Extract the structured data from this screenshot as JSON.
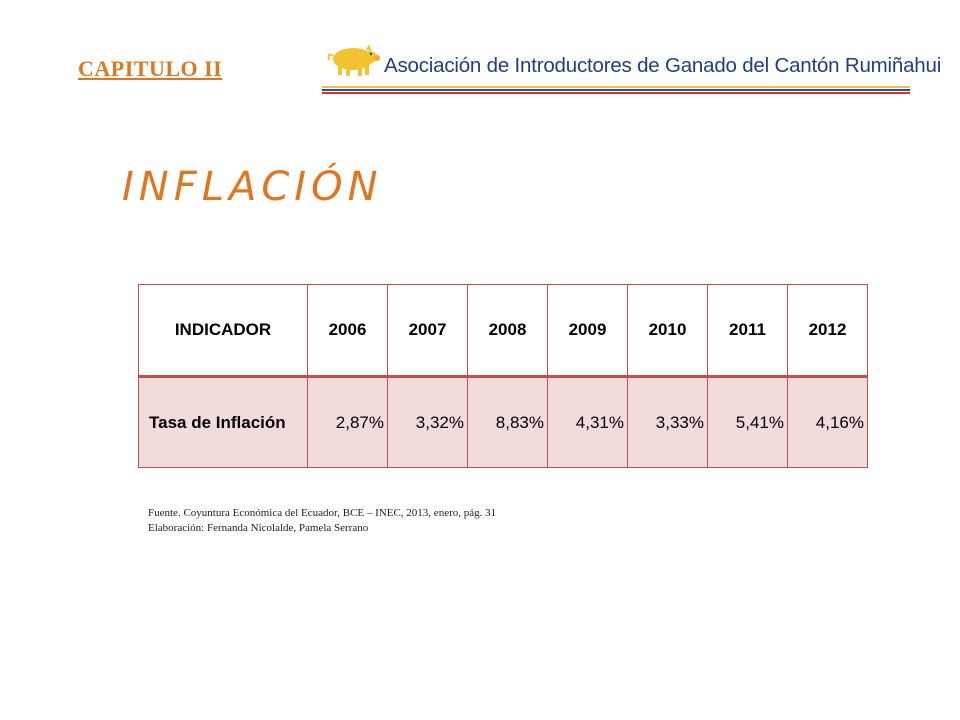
{
  "header": {
    "chapter": "CAPITULO II",
    "organization": "Asociación de Introductores de Ganado del Cantón Rumiñahui",
    "logo_icon": "pig-icon",
    "colors": {
      "accent": "#e0761f",
      "org_text": "#1e3f86",
      "stripe_yellow": "#f2c230",
      "stripe_blue": "#2b4fa0",
      "stripe_red": "#d8312a"
    }
  },
  "title": "INFLACIÓN",
  "table": {
    "headers": [
      "INDICADOR",
      "2006",
      "2007",
      "2008",
      "2009",
      "2010",
      "2011",
      "2012"
    ],
    "row": {
      "label": "Tasa de Inflación",
      "values": [
        "2,87%",
        "3,32%",
        "8,83%",
        "4,31%",
        "3,33%",
        "5,41%",
        "4,16%"
      ]
    },
    "colors": {
      "border": "#c0504d",
      "row_fill": "#f2dcdb"
    }
  },
  "source": {
    "line1": "Fuente. Coyuntura Económica del Ecuador, BCE – INEC, 2013, enero, pág. 31",
    "line2": "Elaboración: Fernanda Nicolalde, Pamela Serrano"
  }
}
